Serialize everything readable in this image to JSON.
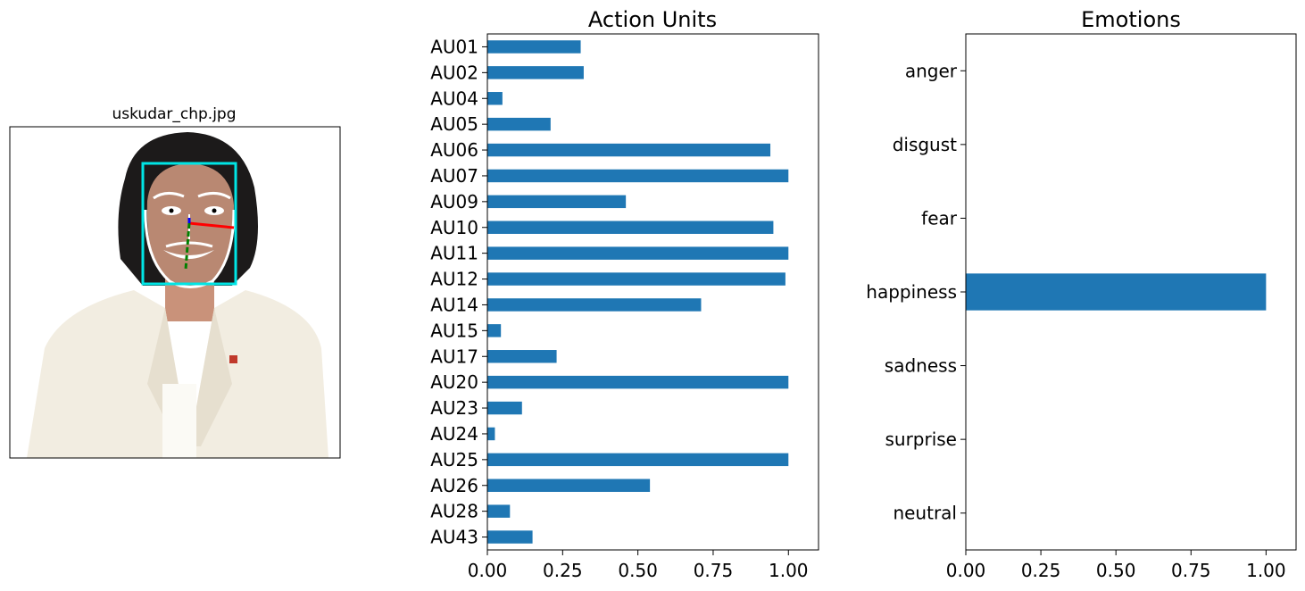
{
  "image_panel": {
    "title": "uskudar_chp.jpg"
  },
  "chart_data": [
    {
      "type": "bar",
      "orientation": "horizontal",
      "title": "Action Units",
      "categories": [
        "AU01",
        "AU02",
        "AU04",
        "AU05",
        "AU06",
        "AU07",
        "AU09",
        "AU10",
        "AU11",
        "AU12",
        "AU14",
        "AU15",
        "AU17",
        "AU20",
        "AU23",
        "AU24",
        "AU25",
        "AU26",
        "AU28",
        "AU43"
      ],
      "values": [
        0.31,
        0.32,
        0.05,
        0.21,
        0.94,
        1.0,
        0.46,
        0.95,
        1.0,
        0.99,
        0.71,
        0.045,
        0.23,
        1.0,
        0.115,
        0.025,
        1.0,
        0.54,
        0.075,
        0.15
      ],
      "xlim": [
        0,
        1.1
      ],
      "xticks": [
        "0.00",
        "0.25",
        "0.50",
        "0.75",
        "1.00"
      ],
      "color": "#1f77b4",
      "grid": false
    },
    {
      "type": "bar",
      "orientation": "horizontal",
      "title": "Emotions",
      "categories": [
        "anger",
        "disgust",
        "fear",
        "happiness",
        "sadness",
        "surprise",
        "neutral"
      ],
      "values": [
        0.0,
        0.0,
        0.0,
        1.0,
        0.0,
        0.0,
        0.0
      ],
      "xlim": [
        0,
        1.1
      ],
      "xticks": [
        "0.00",
        "0.25",
        "0.50",
        "0.75",
        "1.00"
      ],
      "color": "#1f77b4",
      "grid": false
    }
  ]
}
